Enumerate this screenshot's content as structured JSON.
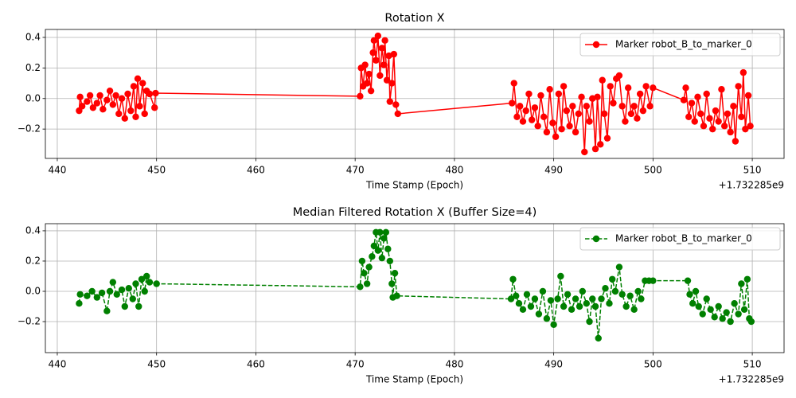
{
  "chart_data": [
    {
      "type": "line",
      "title": "Rotation X",
      "xlabel": "Time Stamp (Epoch)",
      "x_offset_label": "+1.732285e9",
      "xlim": [
        438.8,
        513.2
      ],
      "ylim": [
        -0.392,
        0.452
      ],
      "xticks": [
        440,
        450,
        460,
        470,
        480,
        490,
        500,
        510
      ],
      "yticks": [
        {
          "value": -0.2,
          "label": "−0.2"
        },
        {
          "value": 0,
          "label": "0.0"
        },
        0.2,
        0.4
      ],
      "grid": true,
      "legend": "upper right",
      "x": [
        442.2,
        442.3,
        442.5,
        443.0,
        443.3,
        443.6,
        444.0,
        444.3,
        444.6,
        445.0,
        445.3,
        445.6,
        445.9,
        446.2,
        446.5,
        446.8,
        447.1,
        447.4,
        447.7,
        447.9,
        448.1,
        448.3,
        448.6,
        448.8,
        449.0,
        449.3,
        449.8,
        449.9,
        470.5,
        470.6,
        470.8,
        471.0,
        471.2,
        471.4,
        471.6,
        471.8,
        471.9,
        472.1,
        472.3,
        472.5,
        472.7,
        472.9,
        473.0,
        473.2,
        473.4,
        473.5,
        473.7,
        473.9,
        474.1,
        474.3,
        485.8,
        486.0,
        486.3,
        486.6,
        486.9,
        487.2,
        487.5,
        487.8,
        488.1,
        488.4,
        488.7,
        489.0,
        489.3,
        489.6,
        489.9,
        490.2,
        490.5,
        490.8,
        491.0,
        491.3,
        491.6,
        491.9,
        492.2,
        492.5,
        492.8,
        493.1,
        493.3,
        493.6,
        493.9,
        494.2,
        494.4,
        494.7,
        494.9,
        495.1,
        495.4,
        495.7,
        496.0,
        496.3,
        496.6,
        496.9,
        497.2,
        497.5,
        497.8,
        498.1,
        498.4,
        498.7,
        499.0,
        499.3,
        499.7,
        500.0,
        503.1,
        503.3,
        503.6,
        503.9,
        504.2,
        504.5,
        504.8,
        505.1,
        505.4,
        505.7,
        506.0,
        506.3,
        506.6,
        506.9,
        507.2,
        507.5,
        507.8,
        508.1,
        508.3,
        508.6,
        508.9,
        509.1,
        509.3,
        509.6,
        509.8
      ],
      "series": [
        {
          "name": "Marker robot_B_to_marker_0",
          "color": "#ff0000",
          "line_style": "solid",
          "values": [
            -0.08,
            0.01,
            -0.05,
            -0.02,
            0.02,
            -0.06,
            -0.03,
            0.02,
            -0.07,
            -0.01,
            0.05,
            -0.04,
            0.02,
            -0.1,
            0.0,
            -0.13,
            0.03,
            -0.08,
            0.08,
            -0.12,
            0.13,
            -0.05,
            0.1,
            -0.1,
            0.05,
            0.03,
            -0.06,
            0.035,
            0.015,
            0.2,
            0.08,
            0.22,
            0.1,
            0.16,
            0.05,
            0.3,
            0.38,
            0.25,
            0.41,
            0.15,
            0.33,
            0.22,
            0.38,
            0.12,
            0.28,
            -0.02,
            0.1,
            0.29,
            -0.04,
            -0.1,
            -0.03,
            0.1,
            -0.12,
            -0.05,
            -0.15,
            -0.08,
            0.03,
            -0.14,
            -0.06,
            -0.18,
            0.02,
            -0.12,
            -0.22,
            0.06,
            -0.16,
            -0.25,
            0.03,
            -0.2,
            0.08,
            -0.08,
            -0.18,
            -0.05,
            -0.22,
            -0.1,
            0.01,
            -0.35,
            -0.05,
            -0.15,
            0.0,
            -0.33,
            0.01,
            -0.3,
            0.12,
            -0.1,
            -0.26,
            0.08,
            -0.03,
            0.13,
            0.15,
            -0.05,
            -0.15,
            0.07,
            -0.1,
            -0.05,
            -0.13,
            0.03,
            -0.08,
            0.08,
            -0.05,
            0.07,
            -0.01,
            0.07,
            -0.12,
            -0.03,
            -0.15,
            0.01,
            -0.1,
            -0.18,
            0.03,
            -0.13,
            -0.2,
            -0.08,
            -0.15,
            0.06,
            -0.18,
            -0.1,
            -0.22,
            -0.05,
            -0.28,
            0.08,
            -0.12,
            0.17,
            -0.2,
            0.02,
            -0.18
          ]
        }
      ]
    },
    {
      "type": "line",
      "title": "Median Filtered Rotation X (Buffer Size=4)",
      "xlabel": "Time Stamp (Epoch)",
      "x_offset_label": "+1.732285e9",
      "xlim": [
        438.8,
        513.2
      ],
      "ylim": [
        -0.405,
        0.447
      ],
      "xticks": [
        440,
        450,
        460,
        470,
        480,
        490,
        500,
        510
      ],
      "yticks": [
        {
          "value": -0.2,
          "label": "−0.2"
        },
        {
          "value": 0,
          "label": "0.0"
        },
        0.2,
        0.4
      ],
      "grid": true,
      "legend": "upper right",
      "x": [
        442.2,
        442.3,
        443.0,
        443.5,
        444.0,
        444.5,
        445.0,
        445.3,
        445.6,
        446.0,
        446.5,
        446.8,
        447.2,
        447.6,
        447.9,
        448.2,
        448.5,
        448.8,
        449.0,
        449.3,
        450.0,
        470.5,
        470.7,
        470.9,
        471.2,
        471.4,
        471.7,
        471.9,
        472.1,
        472.3,
        472.5,
        472.7,
        472.9,
        473.1,
        473.3,
        473.5,
        473.7,
        473.8,
        474.0,
        474.2,
        485.7,
        485.9,
        486.2,
        486.5,
        486.9,
        487.3,
        487.7,
        488.1,
        488.5,
        488.9,
        489.3,
        489.7,
        490.0,
        490.4,
        490.7,
        491.0,
        491.4,
        491.8,
        492.2,
        492.6,
        492.9,
        493.3,
        493.6,
        493.9,
        494.2,
        494.5,
        494.8,
        495.2,
        495.6,
        495.9,
        496.2,
        496.6,
        496.9,
        497.3,
        497.7,
        498.1,
        498.5,
        498.8,
        499.2,
        499.6,
        500.0,
        503.5,
        503.7,
        504.0,
        504.3,
        504.6,
        505.0,
        505.4,
        505.8,
        506.2,
        506.6,
        507.0,
        507.4,
        507.8,
        508.2,
        508.6,
        508.9,
        509.2,
        509.5,
        509.7,
        509.9
      ],
      "series": [
        {
          "name": "Marker robot_B_to_marker_0",
          "color": "#008000",
          "line_style": "dashed",
          "values": [
            -0.08,
            -0.02,
            -0.03,
            0.0,
            -0.04,
            -0.01,
            -0.13,
            0.0,
            0.06,
            -0.02,
            0.01,
            -0.1,
            0.02,
            -0.05,
            0.05,
            -0.1,
            0.08,
            0.0,
            0.1,
            0.06,
            0.05,
            0.03,
            0.2,
            0.12,
            0.05,
            0.16,
            0.23,
            0.3,
            0.39,
            0.27,
            0.39,
            0.22,
            0.35,
            0.39,
            0.28,
            0.2,
            0.05,
            -0.04,
            0.12,
            -0.03,
            -0.05,
            0.08,
            -0.03,
            -0.08,
            -0.12,
            -0.02,
            -0.1,
            -0.05,
            -0.15,
            0.0,
            -0.18,
            -0.06,
            -0.22,
            -0.05,
            0.1,
            -0.1,
            -0.02,
            -0.12,
            -0.05,
            -0.1,
            0.0,
            -0.08,
            -0.2,
            -0.05,
            -0.1,
            -0.31,
            -0.05,
            0.02,
            -0.08,
            0.08,
            0.0,
            0.16,
            -0.02,
            -0.1,
            -0.03,
            -0.12,
            0.0,
            -0.05,
            0.07,
            0.07,
            0.07,
            0.07,
            -0.02,
            -0.08,
            0.0,
            -0.1,
            -0.15,
            -0.05,
            -0.12,
            -0.17,
            -0.1,
            -0.18,
            -0.14,
            -0.2,
            -0.08,
            -0.15,
            0.05,
            -0.12,
            0.08,
            -0.18,
            -0.2
          ]
        }
      ]
    }
  ]
}
